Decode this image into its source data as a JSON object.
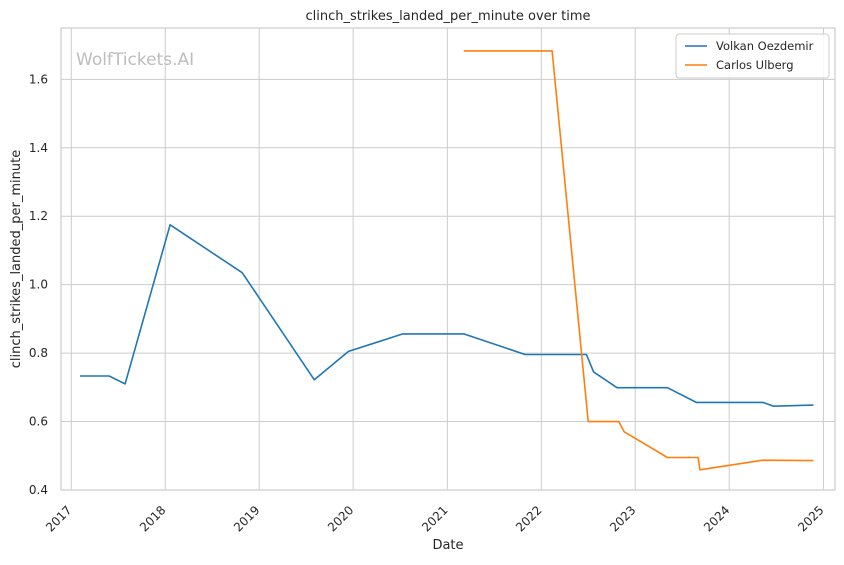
{
  "chart_data": {
    "type": "line",
    "title": "clinch_strikes_landed_per_minute over time",
    "xlabel": "Date",
    "ylabel": "clinch_strikes_landed_per_minute",
    "watermark": "WolfTickets.AI",
    "x_ticks": [
      "2017",
      "2018",
      "2019",
      "2020",
      "2021",
      "2022",
      "2023",
      "2024",
      "2025"
    ],
    "y_ticks": [
      "0.4",
      "0.6",
      "0.8",
      "1.0",
      "1.2",
      "1.4",
      "1.6"
    ],
    "xlim": [
      "2016-11-22",
      "2025-02-15"
    ],
    "ylim": [
      0.4,
      1.75
    ],
    "grid": true,
    "legend_position": "top-right",
    "series": [
      {
        "name": "Volkan Oezdemir",
        "color": "#1f77b4",
        "points": [
          [
            "2017-02-04",
            0.733
          ],
          [
            "2017-05-28",
            0.733
          ],
          [
            "2017-07-29",
            0.71
          ],
          [
            "2018-01-20",
            1.175
          ],
          [
            "2018-10-27",
            1.035
          ],
          [
            "2019-08-03",
            0.722
          ],
          [
            "2019-12-14",
            0.805
          ],
          [
            "2020-07-12",
            0.856
          ],
          [
            "2021-03-06",
            0.856
          ],
          [
            "2021-10-30",
            0.796
          ],
          [
            "2022-06-25",
            0.796
          ],
          [
            "2022-07-23",
            0.745
          ],
          [
            "2022-10-22",
            0.699
          ],
          [
            "2023-05-06",
            0.699
          ],
          [
            "2023-08-26",
            0.656
          ],
          [
            "2024-05-11",
            0.656
          ],
          [
            "2024-06-22",
            0.645
          ],
          [
            "2024-11-23",
            0.648
          ]
        ]
      },
      {
        "name": "Carlos Ulberg",
        "color": "#ff7f0e",
        "points": [
          [
            "2021-03-06",
            1.683
          ],
          [
            "2022-02-12",
            1.683
          ],
          [
            "2022-07-02",
            0.6
          ],
          [
            "2022-10-29",
            0.6
          ],
          [
            "2022-11-19",
            0.57
          ],
          [
            "2023-05-06",
            0.495
          ],
          [
            "2023-09-02",
            0.495
          ],
          [
            "2023-09-09",
            0.459
          ],
          [
            "2024-05-11",
            0.487
          ],
          [
            "2024-11-23",
            0.486
          ]
        ]
      }
    ]
  }
}
